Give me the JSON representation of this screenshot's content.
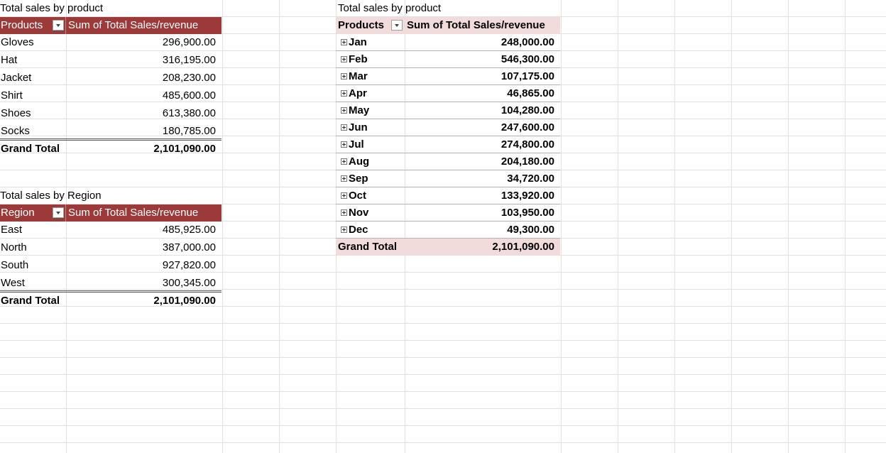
{
  "pivot_product": {
    "title": "Total sales by product",
    "header_label": "Products",
    "value_header": "Sum of Total Sales/revenue",
    "rows": [
      {
        "label": "Gloves",
        "value": "296,900.00"
      },
      {
        "label": "Hat",
        "value": "316,195.00"
      },
      {
        "label": "Jacket",
        "value": "208,230.00"
      },
      {
        "label": "Shirt",
        "value": "485,600.00"
      },
      {
        "label": "Shoes",
        "value": "613,380.00"
      },
      {
        "label": "Socks",
        "value": "180,785.00"
      }
    ],
    "total_label": "Grand Total",
    "total_value": "2,101,090.00"
  },
  "pivot_region": {
    "title": "Total sales by Region",
    "header_label": "Region",
    "value_header": "Sum of Total Sales/revenue",
    "rows": [
      {
        "label": "East",
        "value": "485,925.00"
      },
      {
        "label": "North",
        "value": "387,000.00"
      },
      {
        "label": "South",
        "value": "927,820.00"
      },
      {
        "label": "West",
        "value": "300,345.00"
      }
    ],
    "total_label": "Grand Total",
    "total_value": "2,101,090.00"
  },
  "pivot_month": {
    "title": "Total sales by product",
    "header_label": "Products",
    "value_header": "Sum of Total Sales/revenue",
    "rows": [
      {
        "label": "Jan",
        "value": "248,000.00"
      },
      {
        "label": "Feb",
        "value": "546,300.00"
      },
      {
        "label": "Mar",
        "value": "107,175.00"
      },
      {
        "label": "Apr",
        "value": "46,865.00"
      },
      {
        "label": "May",
        "value": "104,280.00"
      },
      {
        "label": "Jun",
        "value": "247,600.00"
      },
      {
        "label": "Jul",
        "value": "274,800.00"
      },
      {
        "label": "Aug",
        "value": "204,180.00"
      },
      {
        "label": "Sep",
        "value": "34,720.00"
      },
      {
        "label": "Oct",
        "value": "133,920.00"
      },
      {
        "label": "Nov",
        "value": "103,950.00"
      },
      {
        "label": "Dec",
        "value": "49,300.00"
      }
    ],
    "total_label": "Grand Total",
    "total_value": "2,101,090.00"
  },
  "icons": {
    "filter_dropdown": "chevron-down-icon",
    "expand": "plus-box-icon"
  },
  "colors": {
    "header_dark_red": "#9c3a3a",
    "header_pink": "#f2dcdb",
    "gridline": "#e1e1e1"
  }
}
